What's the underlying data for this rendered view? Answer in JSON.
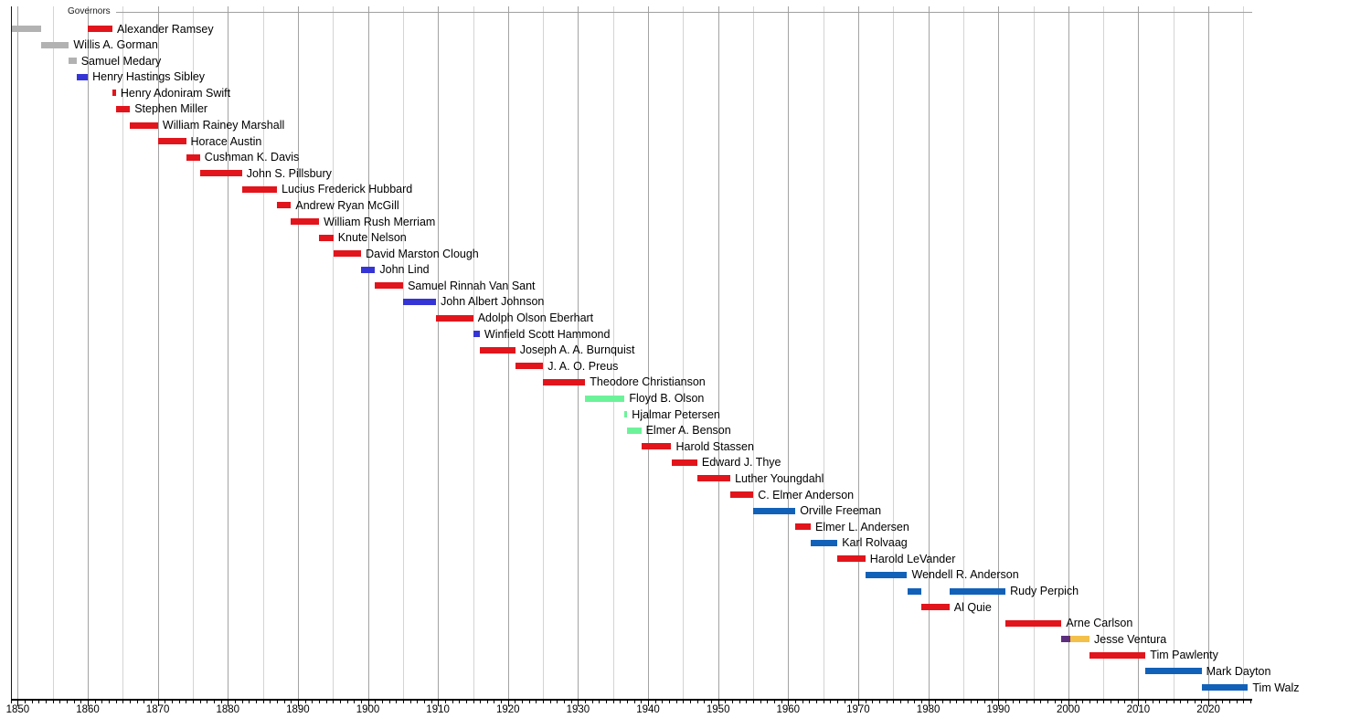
{
  "chart_data": {
    "type": "timeline",
    "title": "Governors",
    "axis": {
      "year_min": 1849,
      "year_max": 2026,
      "grid_step_years": 5,
      "minor_tick_step_years": 1,
      "major_tick_step_years": 10,
      "decade_labels": [
        "1850",
        "1860",
        "1870",
        "1880",
        "1890",
        "1900",
        "1910",
        "1920",
        "1930",
        "1940",
        "1950",
        "1960",
        "1970",
        "1980",
        "1990",
        "2000",
        "2010",
        "2020"
      ]
    },
    "party_colors": {
      "territorial": "#b2b2b2",
      "democratic": "#3535d5",
      "republican": "#e1151b",
      "farmer_labor": "#6cf39a",
      "dfl": "#1261b8",
      "reform": "#5d2e7e",
      "independence": "#f3c04a"
    },
    "grid_colors": {
      "decade": "#a3a3a3",
      "half_decade": "#d4d4d4"
    },
    "governors": [
      {
        "name": "Alexander Ramsey",
        "segments": [
          {
            "start": 1849.1,
            "end": 1853.37,
            "party": "territorial"
          },
          {
            "start": 1860.02,
            "end": 1863.52,
            "party": "republican"
          }
        ]
      },
      {
        "name": "Willis A. Gorman",
        "segments": [
          {
            "start": 1853.37,
            "end": 1857.31,
            "party": "territorial"
          }
        ]
      },
      {
        "name": "Samuel Medary",
        "segments": [
          {
            "start": 1857.31,
            "end": 1858.4,
            "party": "territorial"
          }
        ]
      },
      {
        "name": "Henry Hastings Sibley",
        "segments": [
          {
            "start": 1858.4,
            "end": 1860.02,
            "party": "democratic"
          }
        ]
      },
      {
        "name": "Henry Adoniram Swift",
        "segments": [
          {
            "start": 1863.52,
            "end": 1864.03,
            "party": "republican"
          }
        ]
      },
      {
        "name": "Stephen Miller",
        "segments": [
          {
            "start": 1864.03,
            "end": 1866.03,
            "party": "republican"
          }
        ]
      },
      {
        "name": "William Rainey Marshall",
        "segments": [
          {
            "start": 1866.03,
            "end": 1870.03,
            "party": "republican"
          }
        ]
      },
      {
        "name": "Horace Austin",
        "segments": [
          {
            "start": 1870.03,
            "end": 1874.03,
            "party": "republican"
          }
        ]
      },
      {
        "name": "Cushman K. Davis",
        "segments": [
          {
            "start": 1874.03,
            "end": 1876.03,
            "party": "republican"
          }
        ]
      },
      {
        "name": "John S. Pillsbury",
        "segments": [
          {
            "start": 1876.03,
            "end": 1882.03,
            "party": "republican"
          }
        ]
      },
      {
        "name": "Lucius Frederick Hubbard",
        "segments": [
          {
            "start": 1882.03,
            "end": 1887.03,
            "party": "republican"
          }
        ]
      },
      {
        "name": "Andrew Ryan McGill",
        "segments": [
          {
            "start": 1887.03,
            "end": 1889.03,
            "party": "republican"
          }
        ]
      },
      {
        "name": "William Rush Merriam",
        "segments": [
          {
            "start": 1889.03,
            "end": 1893.03,
            "party": "republican"
          }
        ]
      },
      {
        "name": "Knute Nelson",
        "segments": [
          {
            "start": 1893.03,
            "end": 1895.06,
            "party": "republican"
          }
        ]
      },
      {
        "name": "David Marston Clough",
        "segments": [
          {
            "start": 1895.06,
            "end": 1899.03,
            "party": "republican"
          }
        ]
      },
      {
        "name": "John Lind",
        "segments": [
          {
            "start": 1899.03,
            "end": 1901.03,
            "party": "democratic"
          }
        ]
      },
      {
        "name": "Samuel Rinnah Van Sant",
        "segments": [
          {
            "start": 1901.03,
            "end": 1905.03,
            "party": "republican"
          }
        ]
      },
      {
        "name": "John Albert Johnson",
        "segments": [
          {
            "start": 1905.03,
            "end": 1909.73,
            "party": "democratic"
          }
        ]
      },
      {
        "name": "Adolph Olson Eberhart",
        "segments": [
          {
            "start": 1909.73,
            "end": 1915.03,
            "party": "republican"
          }
        ]
      },
      {
        "name": "Winfield Scott Hammond",
        "segments": [
          {
            "start": 1915.03,
            "end": 1915.97,
            "party": "democratic"
          }
        ]
      },
      {
        "name": "Joseph A. A. Burnquist",
        "segments": [
          {
            "start": 1915.97,
            "end": 1921.03,
            "party": "republican"
          }
        ]
      },
      {
        "name": "J. A. O. Preus",
        "segments": [
          {
            "start": 1921.03,
            "end": 1925.03,
            "party": "republican"
          }
        ]
      },
      {
        "name": "Theodore Christianson",
        "segments": [
          {
            "start": 1925.03,
            "end": 1931.03,
            "party": "republican"
          }
        ]
      },
      {
        "name": "Floyd B. Olson",
        "segments": [
          {
            "start": 1931.03,
            "end": 1936.65,
            "party": "farmer_labor"
          }
        ]
      },
      {
        "name": "Hjalmar Petersen",
        "segments": [
          {
            "start": 1936.65,
            "end": 1937.03,
            "party": "farmer_labor"
          }
        ]
      },
      {
        "name": "Elmer A. Benson",
        "segments": [
          {
            "start": 1937.03,
            "end": 1939.03,
            "party": "farmer_labor"
          }
        ]
      },
      {
        "name": "Harold Stassen",
        "segments": [
          {
            "start": 1939.03,
            "end": 1943.32,
            "party": "republican"
          }
        ]
      },
      {
        "name": "Edward J. Thye",
        "segments": [
          {
            "start": 1943.32,
            "end": 1947.03,
            "party": "republican"
          }
        ]
      },
      {
        "name": "Luther Youngdahl",
        "segments": [
          {
            "start": 1947.03,
            "end": 1951.75,
            "party": "republican"
          }
        ]
      },
      {
        "name": "C. Elmer Anderson",
        "segments": [
          {
            "start": 1951.75,
            "end": 1955.03,
            "party": "republican"
          }
        ]
      },
      {
        "name": "Orville Freeman",
        "segments": [
          {
            "start": 1955.03,
            "end": 1961.03,
            "party": "dfl"
          }
        ]
      },
      {
        "name": "Elmer L. Andersen",
        "segments": [
          {
            "start": 1961.03,
            "end": 1963.23,
            "party": "republican"
          }
        ]
      },
      {
        "name": "Karl Rolvaag",
        "segments": [
          {
            "start": 1963.23,
            "end": 1967.03,
            "party": "dfl"
          }
        ]
      },
      {
        "name": "Harold LeVander",
        "segments": [
          {
            "start": 1967.03,
            "end": 1971.03,
            "party": "republican"
          }
        ]
      },
      {
        "name": "Wendell R. Anderson",
        "segments": [
          {
            "start": 1971.03,
            "end": 1976.99,
            "party": "dfl"
          }
        ]
      },
      {
        "name": "Rudy Perpich",
        "segments": [
          {
            "start": 1976.99,
            "end": 1979.03,
            "party": "dfl"
          },
          {
            "start": 1983.03,
            "end": 1991.03,
            "party": "dfl"
          }
        ]
      },
      {
        "name": "Al Quie",
        "segments": [
          {
            "start": 1979.03,
            "end": 1983.03,
            "party": "republican"
          }
        ]
      },
      {
        "name": "Arne Carlson",
        "segments": [
          {
            "start": 1991.03,
            "end": 1999.03,
            "party": "republican"
          }
        ]
      },
      {
        "name": "Jesse Ventura",
        "segments": [
          {
            "start": 1999.03,
            "end": 2000.25,
            "party": "reform"
          },
          {
            "start": 2000.25,
            "end": 2003.03,
            "party": "independence"
          }
        ]
      },
      {
        "name": "Tim Pawlenty",
        "segments": [
          {
            "start": 2003.03,
            "end": 2011.03,
            "party": "republican"
          }
        ]
      },
      {
        "name": "Mark Dayton",
        "segments": [
          {
            "start": 2011.03,
            "end": 2019.03,
            "party": "dfl"
          }
        ]
      },
      {
        "name": "Tim Walz",
        "segments": [
          {
            "start": 2019.03,
            "end": 2025.65,
            "party": "dfl"
          }
        ]
      }
    ]
  }
}
